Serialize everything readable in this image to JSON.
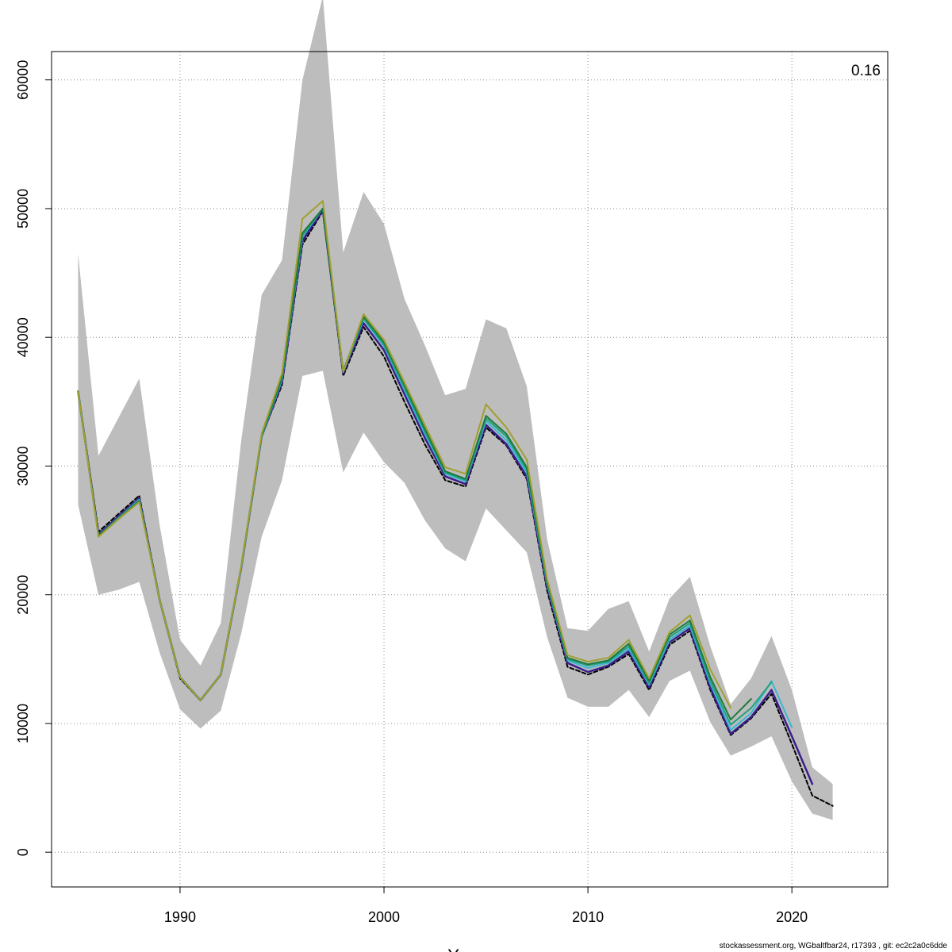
{
  "chart_data": {
    "type": "line",
    "title": "",
    "xlabel": "Years",
    "ylabel": "",
    "xlim": [
      1983.7,
      2024.7
    ],
    "ylim": [
      -2700,
      62200
    ],
    "x_ticks": [
      1990,
      2000,
      2010,
      2020
    ],
    "y_ticks": [
      0,
      10000,
      20000,
      30000,
      40000,
      50000,
      60000
    ],
    "grid": true,
    "annotation": "0.16",
    "band": {
      "years": [
        1985,
        1986,
        1987,
        1988,
        1989,
        1990,
        1991,
        1992,
        1993,
        1994,
        1995,
        1996,
        1997,
        1998,
        1999,
        2000,
        2001,
        2002,
        2003,
        2004,
        2005,
        2006,
        2007,
        2008,
        2009,
        2010,
        2011,
        2012,
        2013,
        2014,
        2015,
        2016,
        2017,
        2018,
        2019,
        2020,
        2021,
        2022
      ],
      "upper": [
        46500,
        30800,
        33800,
        36800,
        25400,
        16500,
        14500,
        17800,
        32000,
        43300,
        46000,
        60000,
        66500,
        46600,
        51300,
        48800,
        43000,
        39400,
        35500,
        36000,
        41400,
        40700,
        36200,
        24300,
        17400,
        17200,
        18900,
        19500,
        15600,
        19700,
        21400,
        16000,
        11500,
        13500,
        16800,
        12600,
        6600,
        5300
      ],
      "lower": [
        27000,
        20000,
        20400,
        21000,
        15500,
        11100,
        9600,
        11000,
        17000,
        24500,
        28900,
        37000,
        37400,
        29500,
        32600,
        30300,
        28700,
        25800,
        23600,
        22600,
        26700,
        25000,
        23300,
        16700,
        12000,
        11300,
        11300,
        12600,
        10500,
        13300,
        14100,
        10100,
        7500,
        8200,
        9000,
        5500,
        3000,
        2500
      ]
    },
    "series": [
      {
        "color": "#000000",
        "dash": true,
        "width": 2,
        "x": [
          1985,
          1986,
          1987,
          1988,
          1989,
          1990,
          1991,
          1992,
          1993,
          1994,
          1995,
          1996,
          1997,
          1998,
          1999,
          2000,
          2001,
          2002,
          2003,
          2004,
          2005,
          2006,
          2007,
          2008,
          2009,
          2010,
          2011,
          2012,
          2013,
          2014,
          2015,
          2016,
          2017,
          2018,
          2019,
          2020,
          2021,
          2022
        ],
        "y": [
          35800,
          24900,
          26300,
          27700,
          19600,
          13500,
          11800,
          13800,
          22100,
          32300,
          36300,
          47200,
          49800,
          37000,
          40800,
          38500,
          35000,
          31700,
          28900,
          28400,
          33000,
          31600,
          29000,
          20300,
          14400,
          13800,
          14400,
          15400,
          12600,
          16100,
          17200,
          12600,
          9100,
          10400,
          12300,
          8400,
          4400,
          3600
        ]
      },
      {
        "color": "#3c1e8c",
        "dash": false,
        "width": 2.5,
        "x": [
          1985,
          1986,
          1987,
          1988,
          1989,
          1990,
          1991,
          1992,
          1993,
          1994,
          1995,
          1996,
          1997,
          1998,
          1999,
          2000,
          2001,
          2002,
          2003,
          2004,
          2005,
          2006,
          2007,
          2008,
          2009,
          2010,
          2011,
          2012,
          2013,
          2014,
          2015,
          2016,
          2017,
          2018,
          2019,
          2020,
          2021
        ],
        "y": [
          35800,
          24700,
          26100,
          27500,
          19600,
          13600,
          11800,
          13800,
          22100,
          32300,
          36500,
          47500,
          49900,
          37200,
          41100,
          39000,
          35600,
          32200,
          29200,
          28600,
          33200,
          31700,
          29200,
          20600,
          14700,
          14000,
          14500,
          15600,
          12800,
          16300,
          17400,
          12800,
          9200,
          10500,
          12600,
          9000,
          5300
        ]
      },
      {
        "color": "#3ab8d0",
        "dash": false,
        "width": 2,
        "x": [
          1985,
          1986,
          1987,
          1988,
          1989,
          1990,
          1991,
          1992,
          1993,
          1994,
          1995,
          1996,
          1997,
          1998,
          1999,
          2000,
          2001,
          2002,
          2003,
          2004,
          2005,
          2006,
          2007,
          2008,
          2009,
          2010,
          2011,
          2012,
          2013,
          2014,
          2015,
          2016,
          2017,
          2018,
          2019,
          2020
        ],
        "y": [
          35800,
          24600,
          26000,
          27400,
          19600,
          13600,
          11800,
          13800,
          22100,
          32300,
          36700,
          47800,
          50000,
          37300,
          41400,
          39300,
          35900,
          32500,
          29400,
          28800,
          33500,
          32000,
          29500,
          20800,
          14900,
          14300,
          14700,
          15800,
          13000,
          16500,
          17600,
          13100,
          9500,
          10800,
          13300,
          9700
        ]
      },
      {
        "color": "#21a080",
        "dash": false,
        "width": 2,
        "x": [
          1985,
          1986,
          1987,
          1988,
          1989,
          1990,
          1991,
          1992,
          1993,
          1994,
          1995,
          1996,
          1997,
          1998,
          1999,
          2000,
          2001,
          2002,
          2003,
          2004,
          2005,
          2006,
          2007,
          2008,
          2009,
          2010,
          2011,
          2012,
          2013,
          2014,
          2015,
          2016,
          2017,
          2018,
          2019
        ],
        "y": [
          35800,
          24600,
          26000,
          27300,
          19600,
          13600,
          11800,
          13800,
          22200,
          32300,
          36800,
          47900,
          50000,
          37300,
          41500,
          39400,
          36100,
          32700,
          29500,
          28900,
          33700,
          32300,
          29700,
          20900,
          15000,
          14500,
          14800,
          16000,
          13100,
          16700,
          17800,
          13300,
          9900,
          11200,
          13200
        ]
      },
      {
        "color": "#1f7a3a",
        "dash": false,
        "width": 2,
        "x": [
          1985,
          1986,
          1987,
          1988,
          1989,
          1990,
          1991,
          1992,
          1993,
          1994,
          1995,
          1996,
          1997,
          1998,
          1999,
          2000,
          2001,
          2002,
          2003,
          2004,
          2005,
          2006,
          2007,
          2008,
          2009,
          2010,
          2011,
          2012,
          2013,
          2014,
          2015,
          2016,
          2017,
          2018
        ],
        "y": [
          35800,
          24600,
          25900,
          27300,
          19600,
          13600,
          11800,
          13800,
          22200,
          32400,
          36900,
          48100,
          50000,
          37400,
          41600,
          39600,
          36300,
          32900,
          29600,
          29000,
          33900,
          32500,
          29900,
          21000,
          15100,
          14600,
          14900,
          16200,
          13300,
          16900,
          18000,
          13600,
          10300,
          11900
        ]
      },
      {
        "color": "#a0a030",
        "dash": false,
        "width": 2,
        "x": [
          1985,
          1986,
          1987,
          1988,
          1989,
          1990,
          1991,
          1992,
          1993,
          1994,
          1995,
          1996,
          1997,
          1998,
          1999,
          2000,
          2001,
          2002,
          2003,
          2004,
          2005,
          2006,
          2007,
          2008,
          2009,
          2010,
          2011,
          2012,
          2013,
          2014,
          2015,
          2016,
          2017
        ],
        "y": [
          35800,
          24500,
          25900,
          27200,
          19600,
          13600,
          11800,
          13800,
          22200,
          32500,
          37200,
          49200,
          50600,
          37300,
          41800,
          39800,
          36500,
          33200,
          29900,
          29400,
          34800,
          33000,
          30500,
          21200,
          15300,
          14800,
          15100,
          16500,
          13500,
          17100,
          18400,
          14200,
          11200
        ]
      }
    ]
  },
  "footer": "stockassessment.org, WGbaltfbar24, r17393 , git: ec2c2a0c6dde"
}
